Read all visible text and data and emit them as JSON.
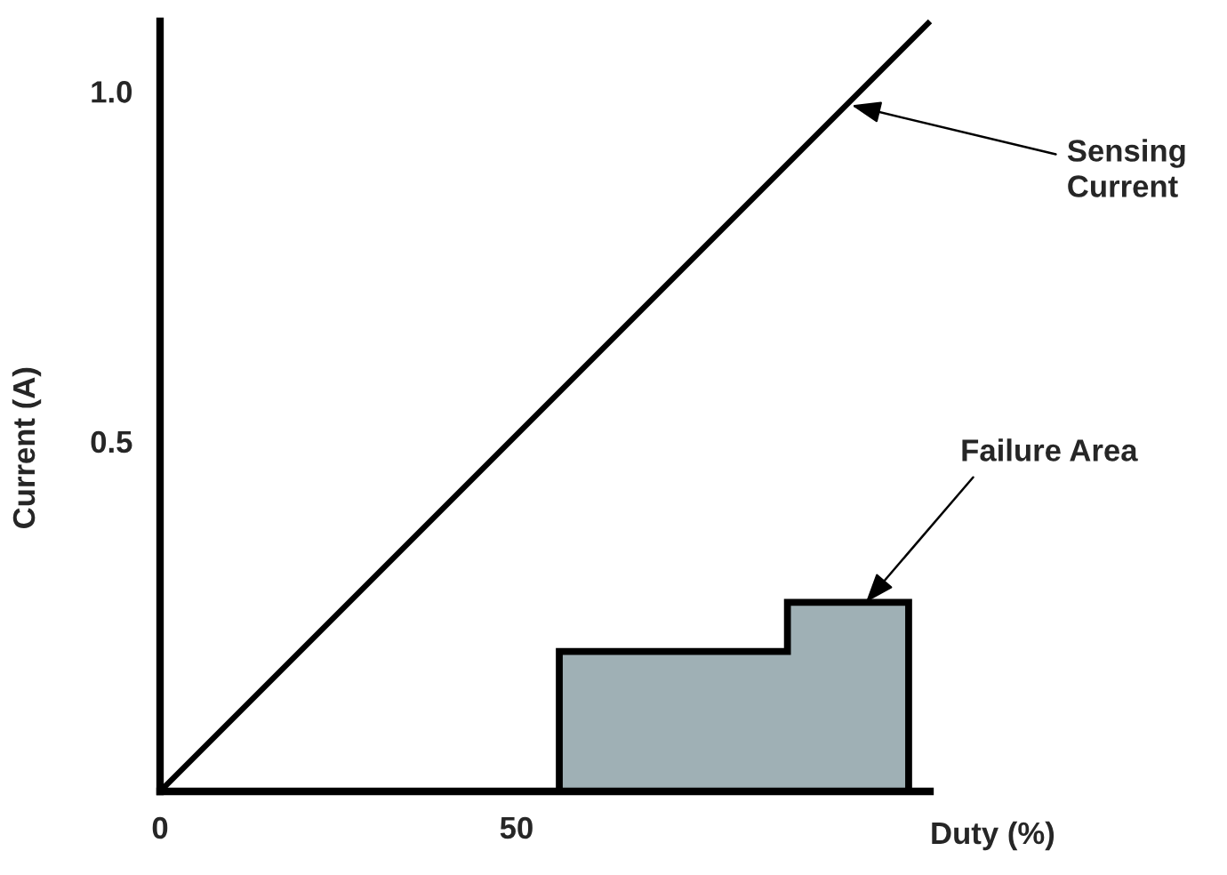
{
  "chart_data": {
    "type": "line",
    "xlabel": "Duty (%)",
    "ylabel": "Current (A)",
    "series": [
      {
        "color": "#000000",
        "x": [
          0,
          108
        ],
        "values": [
          0,
          1.1
        ]
      },
      {
        "type": "area",
        "color": "#9fb0b5",
        "x": [
          56,
          56,
          88,
          88,
          105,
          105
        ],
        "values": [
          0,
          0.2,
          0.2,
          0.27,
          0.27,
          0
        ]
      }
    ],
    "xlim": [
      0,
      108
    ],
    "ylim": [
      0,
      1.1
    ],
    "xticks": [
      0,
      50
    ],
    "yticks": [
      0.5,
      {
        "value": 1,
        "label": "1.0"
      }
    ],
    "annotations": [
      {
        "text": "Sensing\nCurrent",
        "x": 97,
        "y": 0.98
      },
      {
        "text": "Failure Area",
        "x": 99,
        "y": 0.27
      }
    ],
    "grid": false,
    "line_style": "solid"
  }
}
